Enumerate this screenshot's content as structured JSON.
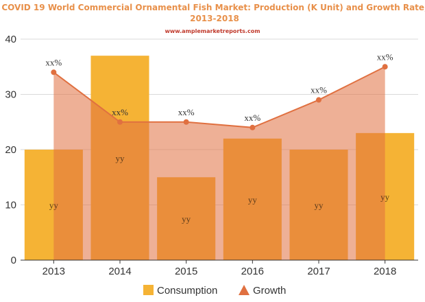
{
  "chart_data": {
    "type": "bar",
    "title": "COVID 19 World Commercial Ornamental Fish Market: Production (K Unit) and Growth Rate,",
    "title_line2": "2013-2018",
    "subtitle": "www.amplemarketreports.com",
    "categories": [
      "2013",
      "2014",
      "2015",
      "2016",
      "2017",
      "2018"
    ],
    "ylim": [
      0,
      40
    ],
    "y_ticks": [
      "0",
      "10",
      "20",
      "30",
      "40"
    ],
    "grid": true,
    "legend_position": "bottom",
    "series": [
      {
        "name": "Consumption",
        "kind": "bar",
        "color": "#f5b335",
        "values": [
          20,
          37,
          15,
          22,
          20,
          23
        ],
        "labels": [
          "yy",
          "yy",
          "yy",
          "yy",
          "yy",
          "yy"
        ]
      },
      {
        "name": "Growth",
        "kind": "area-line",
        "color": "#e07040",
        "fill_color": "#e07040",
        "values": [
          34,
          25,
          25,
          24,
          29,
          35
        ],
        "labels": [
          "xx%",
          "xx%",
          "xx%",
          "xx%",
          "xx%",
          "xx%"
        ]
      }
    ]
  }
}
